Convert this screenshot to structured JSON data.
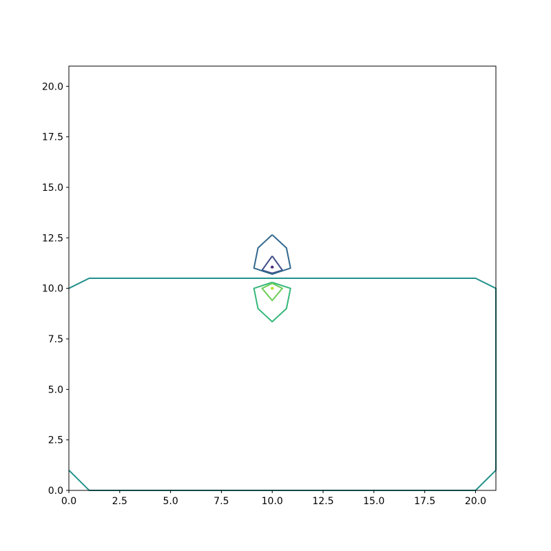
{
  "chart_data": {
    "type": "contour",
    "title": "",
    "xlabel": "",
    "ylabel": "",
    "xlim": [
      0,
      21
    ],
    "ylim": [
      0,
      21
    ],
    "grid": false,
    "x_ticks": [
      0.0,
      2.5,
      5.0,
      7.5,
      10.0,
      12.5,
      15.0,
      17.5,
      20.0
    ],
    "x_tick_labels": [
      "0.0",
      "2.5",
      "5.0",
      "7.5",
      "10.0",
      "12.5",
      "15.0",
      "17.5",
      "20.0"
    ],
    "y_ticks": [
      0.0,
      2.5,
      5.0,
      7.5,
      10.0,
      12.5,
      15.0,
      17.5,
      20.0
    ],
    "y_tick_labels": [
      "0.0",
      "2.5",
      "5.0",
      "7.5",
      "10.0",
      "12.5",
      "15.0",
      "17.5",
      "20.0"
    ],
    "contours": [
      {
        "color": "#482878",
        "points": [
          [
            10.0,
            11.0
          ],
          [
            10.05,
            11.05
          ],
          [
            10.0,
            11.1
          ],
          [
            9.95,
            11.05
          ],
          [
            10.0,
            11.0
          ]
        ]
      },
      {
        "color": "#3e4a89",
        "points": [
          [
            10.0,
            11.6
          ],
          [
            10.5,
            10.9
          ],
          [
            10.0,
            10.75
          ],
          [
            9.5,
            10.9
          ],
          [
            10.0,
            11.6
          ]
        ]
      },
      {
        "color": "#31688e",
        "points": [
          [
            10.0,
            12.65
          ],
          [
            10.7,
            12.0
          ],
          [
            10.9,
            11.0
          ],
          [
            10.0,
            10.7
          ],
          [
            9.1,
            11.0
          ],
          [
            9.3,
            12.0
          ],
          [
            10.0,
            12.65
          ]
        ]
      },
      {
        "color": "#21918c",
        "points": [
          [
            0.0,
            10.0
          ],
          [
            1.0,
            10.5
          ],
          [
            10.0,
            10.5
          ],
          [
            20.0,
            10.5
          ],
          [
            21.0,
            10.0
          ],
          [
            21.0,
            1.0
          ],
          [
            20.0,
            0.0
          ],
          [
            1.0,
            0.0
          ],
          [
            0.0,
            1.0
          ]
        ]
      },
      {
        "color": "#35b779",
        "points": [
          [
            10.0,
            10.3
          ],
          [
            10.9,
            10.0
          ],
          [
            10.7,
            9.0
          ],
          [
            10.0,
            8.35
          ],
          [
            9.3,
            9.0
          ],
          [
            9.1,
            10.0
          ],
          [
            10.0,
            10.3
          ]
        ]
      },
      {
        "color": "#6ece58",
        "points": [
          [
            10.0,
            10.25
          ],
          [
            10.5,
            10.0
          ],
          [
            10.0,
            9.4
          ],
          [
            9.5,
            10.0
          ],
          [
            10.0,
            10.25
          ]
        ]
      },
      {
        "color": "#b5de2b",
        "points": [
          [
            10.0,
            9.95
          ],
          [
            10.05,
            10.0
          ],
          [
            10.0,
            10.05
          ],
          [
            9.95,
            10.0
          ],
          [
            10.0,
            9.95
          ]
        ]
      }
    ]
  }
}
